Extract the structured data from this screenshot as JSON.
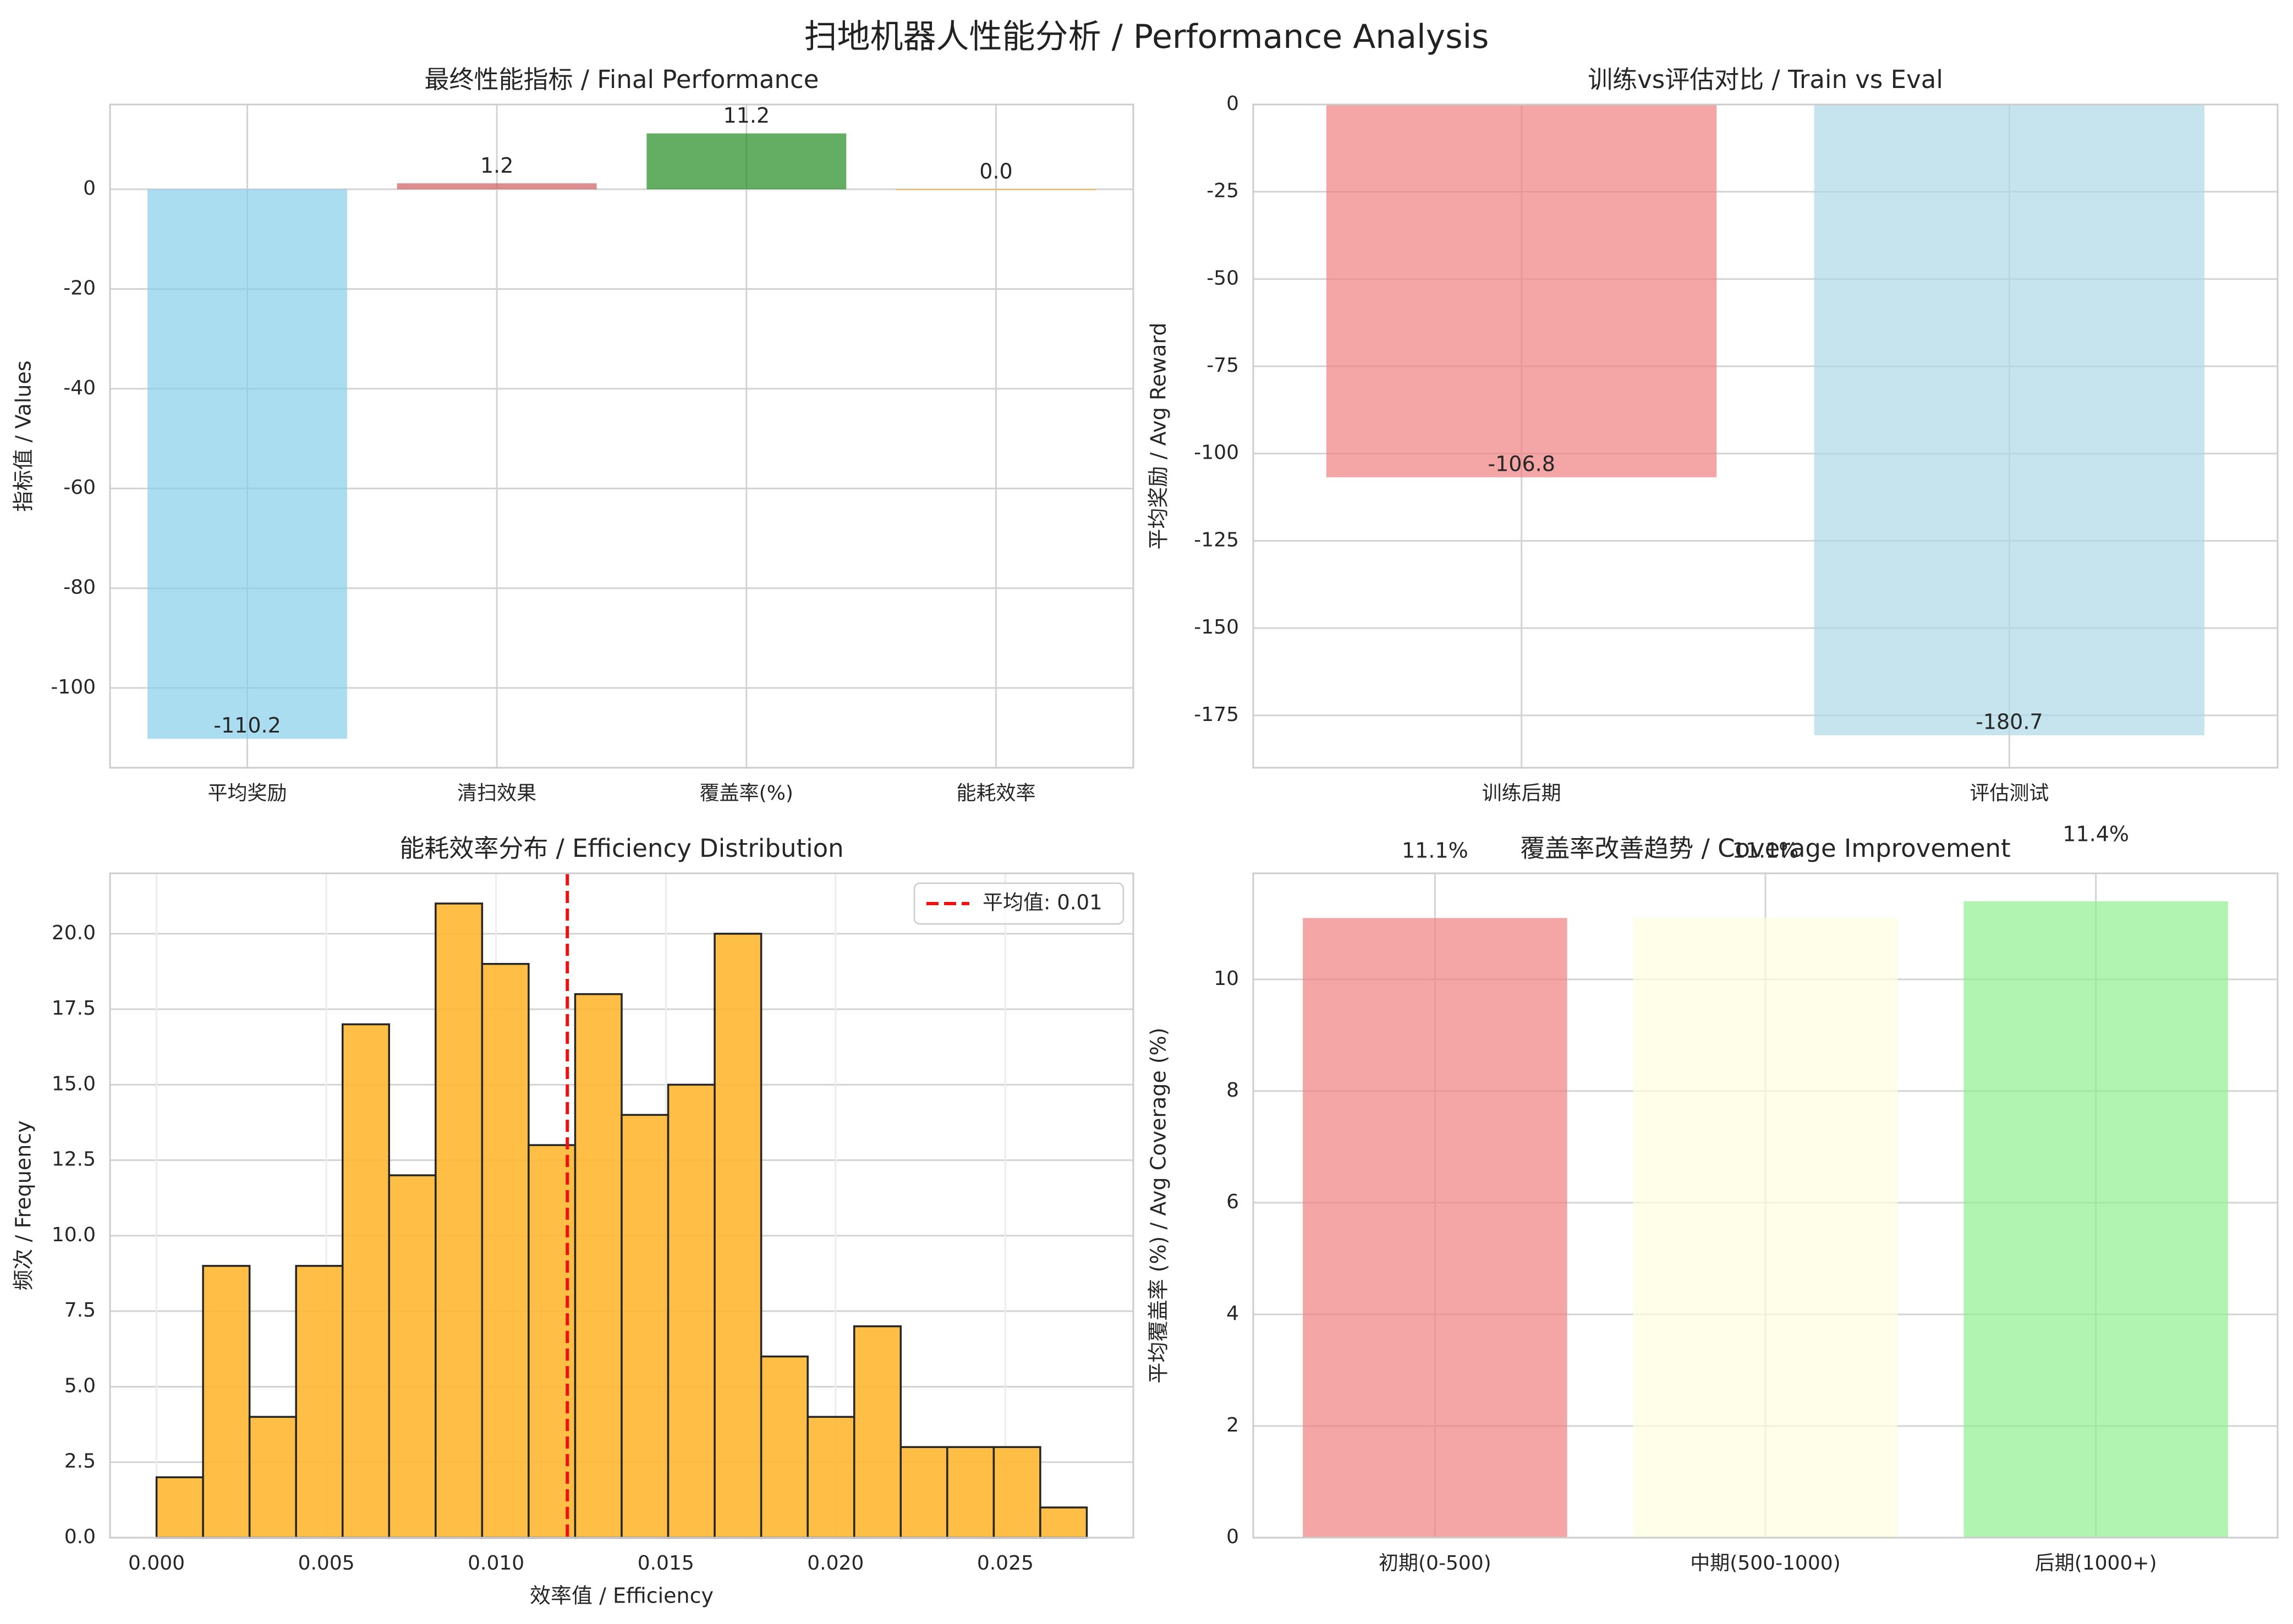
{
  "title": "扫地机器人性能分析 / Performance Analysis",
  "chart_data": [
    {
      "type": "bar",
      "title": "最终性能指标 / Final Performance",
      "xlabel": "",
      "ylabel": "指标值 / Values",
      "categories": [
        "平均奖励",
        "清扫效果",
        "覆盖率(%)",
        "能耗效率"
      ],
      "values": [
        -110.2,
        1.2,
        11.2,
        0.0
      ],
      "value_labels": [
        "-110.2",
        "1.2",
        "11.2",
        "0.0"
      ],
      "colors": [
        "#87ceeb",
        "#cd5c5c",
        "#228b22",
        "#ffa500"
      ],
      "ylim": [
        -116,
        17
      ],
      "yticks": [
        0,
        -20,
        -40,
        -60,
        -80,
        -100
      ],
      "ytick_labels": [
        "0",
        "-20",
        "-40",
        "-60",
        "-80",
        "-100"
      ],
      "grid": true
    },
    {
      "type": "bar",
      "title": "训练vs评估对比 / Train vs Eval",
      "xlabel": "",
      "ylabel": "平均奖励 / Avg Reward",
      "categories": [
        "训练后期",
        "评估测试"
      ],
      "values": [
        -106.8,
        -180.7
      ],
      "value_labels": [
        "-106.8",
        "-180.7"
      ],
      "colors": [
        "#f08080",
        "#add8e6"
      ],
      "ylim": [
        -190,
        0
      ],
      "yticks": [
        0,
        -25,
        -50,
        -75,
        -100,
        -125,
        -150,
        -175
      ],
      "ytick_labels": [
        "0",
        "-25",
        "-50",
        "-75",
        "-100",
        "-125",
        "-150",
        "-175"
      ],
      "grid": true
    },
    {
      "type": "histogram",
      "title": "能耗效率分布 / Efficiency Distribution",
      "xlabel": "效率值 / Efficiency",
      "ylabel": "频次 / Frequency",
      "bin_start": 0.0,
      "bin_width": 0.00137,
      "counts": [
        2,
        9,
        4,
        9,
        17,
        12,
        21,
        19,
        13,
        18,
        14,
        15,
        20,
        6,
        4,
        7,
        3,
        3,
        3,
        1
      ],
      "color": "#ffb732",
      "mean_line": 0.0121,
      "legend": "平均值: 0.01",
      "legend_position": "top-right",
      "xlim": [
        -0.00137,
        0.02877
      ],
      "ylim": [
        0,
        22
      ],
      "xticks": [
        0.0,
        0.005,
        0.01,
        0.015,
        0.02,
        0.025
      ],
      "xtick_labels": [
        "0.000",
        "0.005",
        "0.010",
        "0.015",
        "0.020",
        "0.025"
      ],
      "yticks": [
        0,
        2.5,
        5,
        7.5,
        10,
        12.5,
        15,
        17.5,
        20
      ],
      "ytick_labels": [
        "0.0",
        "2.5",
        "5.0",
        "7.5",
        "10.0",
        "12.5",
        "15.0",
        "17.5",
        "20.0"
      ],
      "grid": true
    },
    {
      "type": "bar",
      "title": "覆盖率改善趋势 / Coverage Improvement",
      "xlabel": "",
      "ylabel": "平均覆盖率 (%) / Avg Coverage (%)",
      "categories": [
        "初期(0-500)",
        "中期(500-1000)",
        "后期(1000+)"
      ],
      "values": [
        11.1,
        11.1,
        11.4
      ],
      "value_labels": [
        "11.1%",
        "11.1%",
        "11.4%"
      ],
      "colors": [
        "#f08080",
        "#ffffe0",
        "#90ee90"
      ],
      "ylim": [
        0,
        11.9
      ],
      "yticks": [
        0,
        2,
        4,
        6,
        8,
        10
      ],
      "ytick_labels": [
        "0",
        "2",
        "4",
        "6",
        "8",
        "10"
      ],
      "grid": true
    }
  ]
}
